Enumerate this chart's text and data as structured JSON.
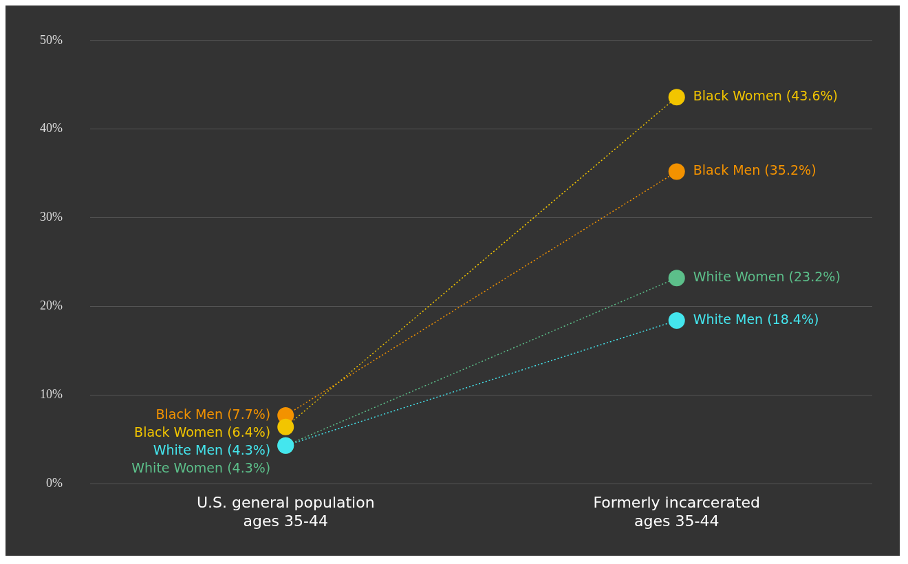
{
  "chart_data": {
    "type": "line",
    "categories": [
      "U.S. general population\nages 35-44",
      "Formerly incarcerated\nages 35-44"
    ],
    "series": [
      {
        "color": "#f2c500",
        "values": [
          6.4,
          43.6
        ],
        "value_labels": [
          "Black Women (6.4%)",
          "Black Women (43.6%)"
        ]
      },
      {
        "color": "#f39200",
        "values": [
          7.7,
          35.2
        ],
        "value_labels": [
          "Black Men (7.7%)",
          "Black Men (35.2%)"
        ]
      },
      {
        "color": "#44e6ee",
        "values": [
          4.3,
          18.4
        ],
        "value_labels": [
          "White Men (4.3%)",
          "White Men (18.4%)"
        ]
      },
      {
        "color": "#5cbf8a",
        "values": [
          4.3,
          23.2
        ],
        "value_labels": [
          "White Women (4.3%)",
          "White Women (23.2%)"
        ]
      }
    ],
    "ylim": [
      0,
      50
    ],
    "yticks": [
      {
        "value": 0,
        "label": "0%"
      },
      {
        "value": 10,
        "label": "10%"
      },
      {
        "value": 20,
        "label": "20%"
      },
      {
        "value": 30,
        "label": "30%"
      },
      {
        "value": 40,
        "label": "40%"
      },
      {
        "value": 50,
        "label": "50%"
      }
    ],
    "grid": "y",
    "legend": false,
    "marker": "circle",
    "line_style": "dotted"
  }
}
